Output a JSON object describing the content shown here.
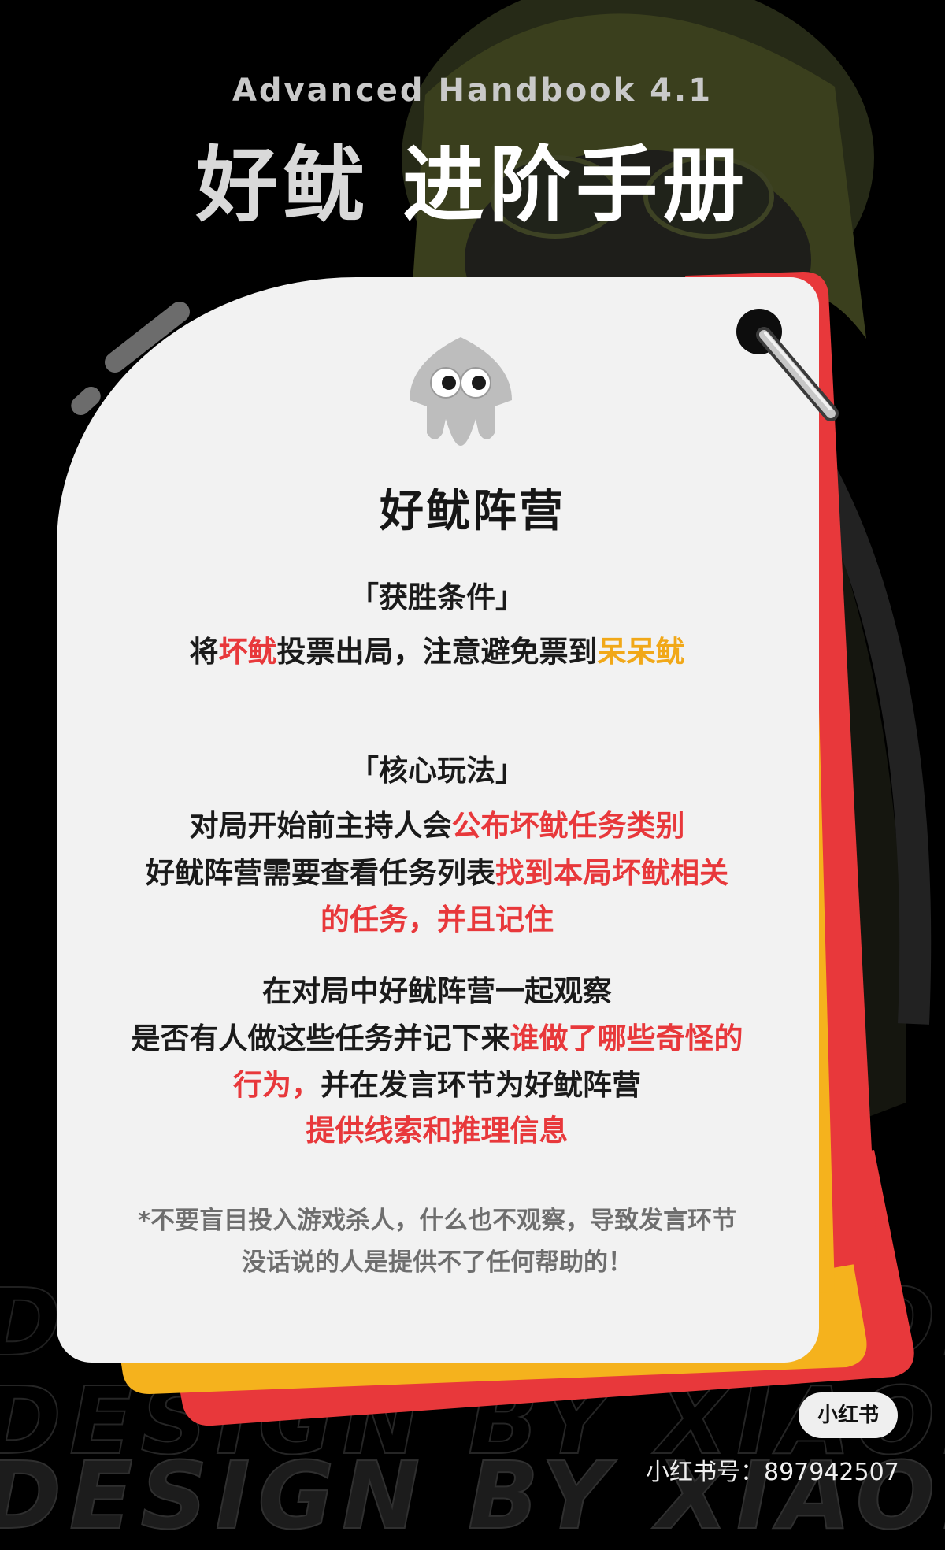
{
  "header": {
    "subtitle": "Advanced Handbook 4.1",
    "title_part1": "好鱿",
    "title_part2": "进阶手册"
  },
  "card": {
    "faction_title": "好鱿阵营",
    "win_section": {
      "heading": "「获胜条件」",
      "line": [
        "将",
        "坏鱿",
        "投票出局，注意避免票到",
        "呆呆鱿"
      ]
    },
    "core_section": {
      "heading": "「核心玩法」",
      "p1_line1": [
        "对局开始前主持人会",
        "公布坏鱿任务类别"
      ],
      "p1_line2": [
        "好鱿阵营需要查看任务列表",
        "找到本局坏鱿相关"
      ],
      "p1_line3": "的任务，并且记住",
      "p2_line1": "在对局中好鱿阵营一起观察",
      "p2_line2": [
        "是否有人做这些任务并记下来",
        "谁做了哪些奇怪的"
      ],
      "p2_line3": [
        "行为，",
        "并在发言环节为好鱿阵营"
      ],
      "p2_line4": "提供线索和推理信息"
    },
    "note_line1": "*不要盲目投入游戏杀人，什么也不观察，导致发言环节",
    "note_line2": "没话说的人是提供不了任何帮助的！"
  },
  "watermark": "DESIGN BY XIAOHEI",
  "footer": {
    "logo": "小红书",
    "account": "小红书号：897942507"
  },
  "colors": {
    "card": "#f2f2f2",
    "accent_red": "#e8383b",
    "accent_yellow": "#f1a818",
    "layer_yellow": "#f5b21d",
    "layer_red": "#e8383b",
    "background": "#000000"
  },
  "icons": [
    "squid-icon",
    "ring-icon"
  ]
}
